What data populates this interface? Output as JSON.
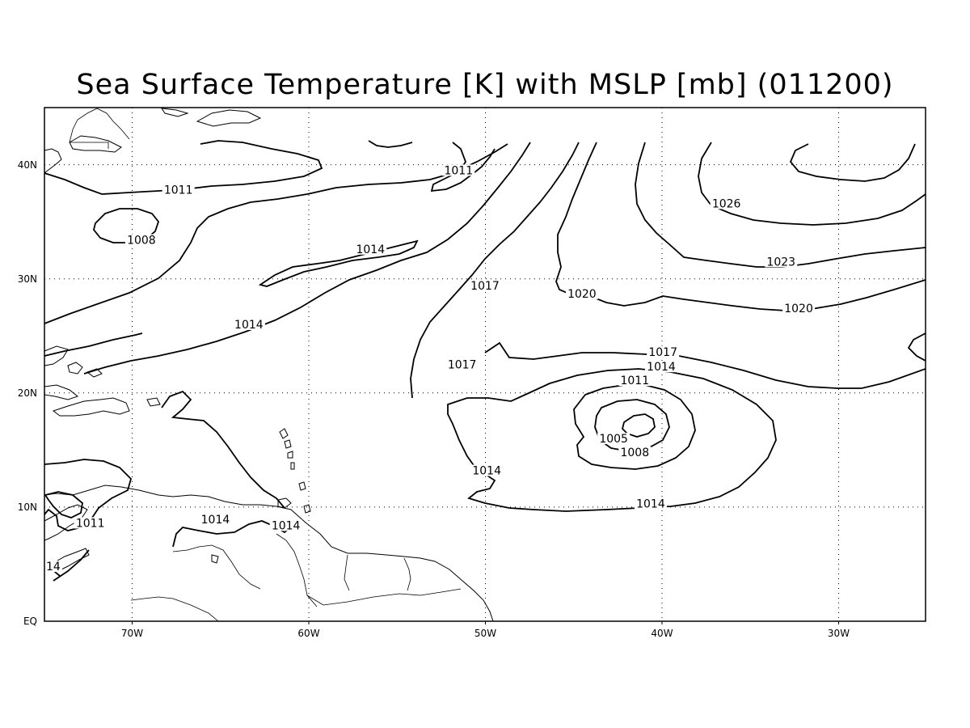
{
  "title": "Sea Surface Temperature [K] with MSLP [mb] (011200)",
  "x_ticks": [
    {
      "label": "70W",
      "lon": -70
    },
    {
      "label": "60W",
      "lon": -60
    },
    {
      "label": "50W",
      "lon": -50
    },
    {
      "label": "40W",
      "lon": -40
    },
    {
      "label": "30W",
      "lon": -30
    }
  ],
  "y_ticks": [
    {
      "label": "40N",
      "lat": 40
    },
    {
      "label": "30N",
      "lat": 30
    },
    {
      "label": "20N",
      "lat": 20
    },
    {
      "label": "10N",
      "lat": 10
    },
    {
      "label": "EQ",
      "lat": 0
    }
  ],
  "extent": {
    "lon_min": -75,
    "lon_max": -25,
    "lat_min": 0,
    "lat_max": 45
  },
  "grid": true,
  "isobar_interval_mb": 3,
  "contour_labels": [
    {
      "text": "1011",
      "lon": -67.4,
      "lat": 37.6
    },
    {
      "text": "1011",
      "lon": -51.5,
      "lat": 39.3
    },
    {
      "text": "1008",
      "lon": -69.5,
      "lat": 33.2
    },
    {
      "text": "1014",
      "lon": -56.5,
      "lat": 32.4
    },
    {
      "text": "1017",
      "lon": -50.0,
      "lat": 29.2
    },
    {
      "text": "1014",
      "lon": -63.4,
      "lat": 25.8
    },
    {
      "text": "1020",
      "lon": -44.5,
      "lat": 28.5
    },
    {
      "text": "1026",
      "lon": -36.3,
      "lat": 36.4
    },
    {
      "text": "1023",
      "lon": -33.2,
      "lat": 31.3
    },
    {
      "text": "1020",
      "lon": -32.2,
      "lat": 27.2
    },
    {
      "text": "1017",
      "lon": -39.9,
      "lat": 23.4
    },
    {
      "text": "1017",
      "lon": -51.3,
      "lat": 22.3
    },
    {
      "text": "1014",
      "lon": -40.0,
      "lat": 22.1
    },
    {
      "text": "1011",
      "lon": -41.5,
      "lat": 20.9
    },
    {
      "text": "1005",
      "lon": -42.7,
      "lat": 15.8
    },
    {
      "text": "1008",
      "lon": -41.5,
      "lat": 14.6
    },
    {
      "text": "1014",
      "lon": -49.9,
      "lat": 13.0
    },
    {
      "text": "1014",
      "lon": -40.6,
      "lat": 10.1
    },
    {
      "text": "1014",
      "lon": -65.3,
      "lat": 8.7
    },
    {
      "text": "1014",
      "lon": -61.3,
      "lat": 8.2
    },
    {
      "text": "1011",
      "lon": -72.4,
      "lat": 8.4
    },
    {
      "text": "14",
      "lon": -74.5,
      "lat": 4.6
    }
  ]
}
